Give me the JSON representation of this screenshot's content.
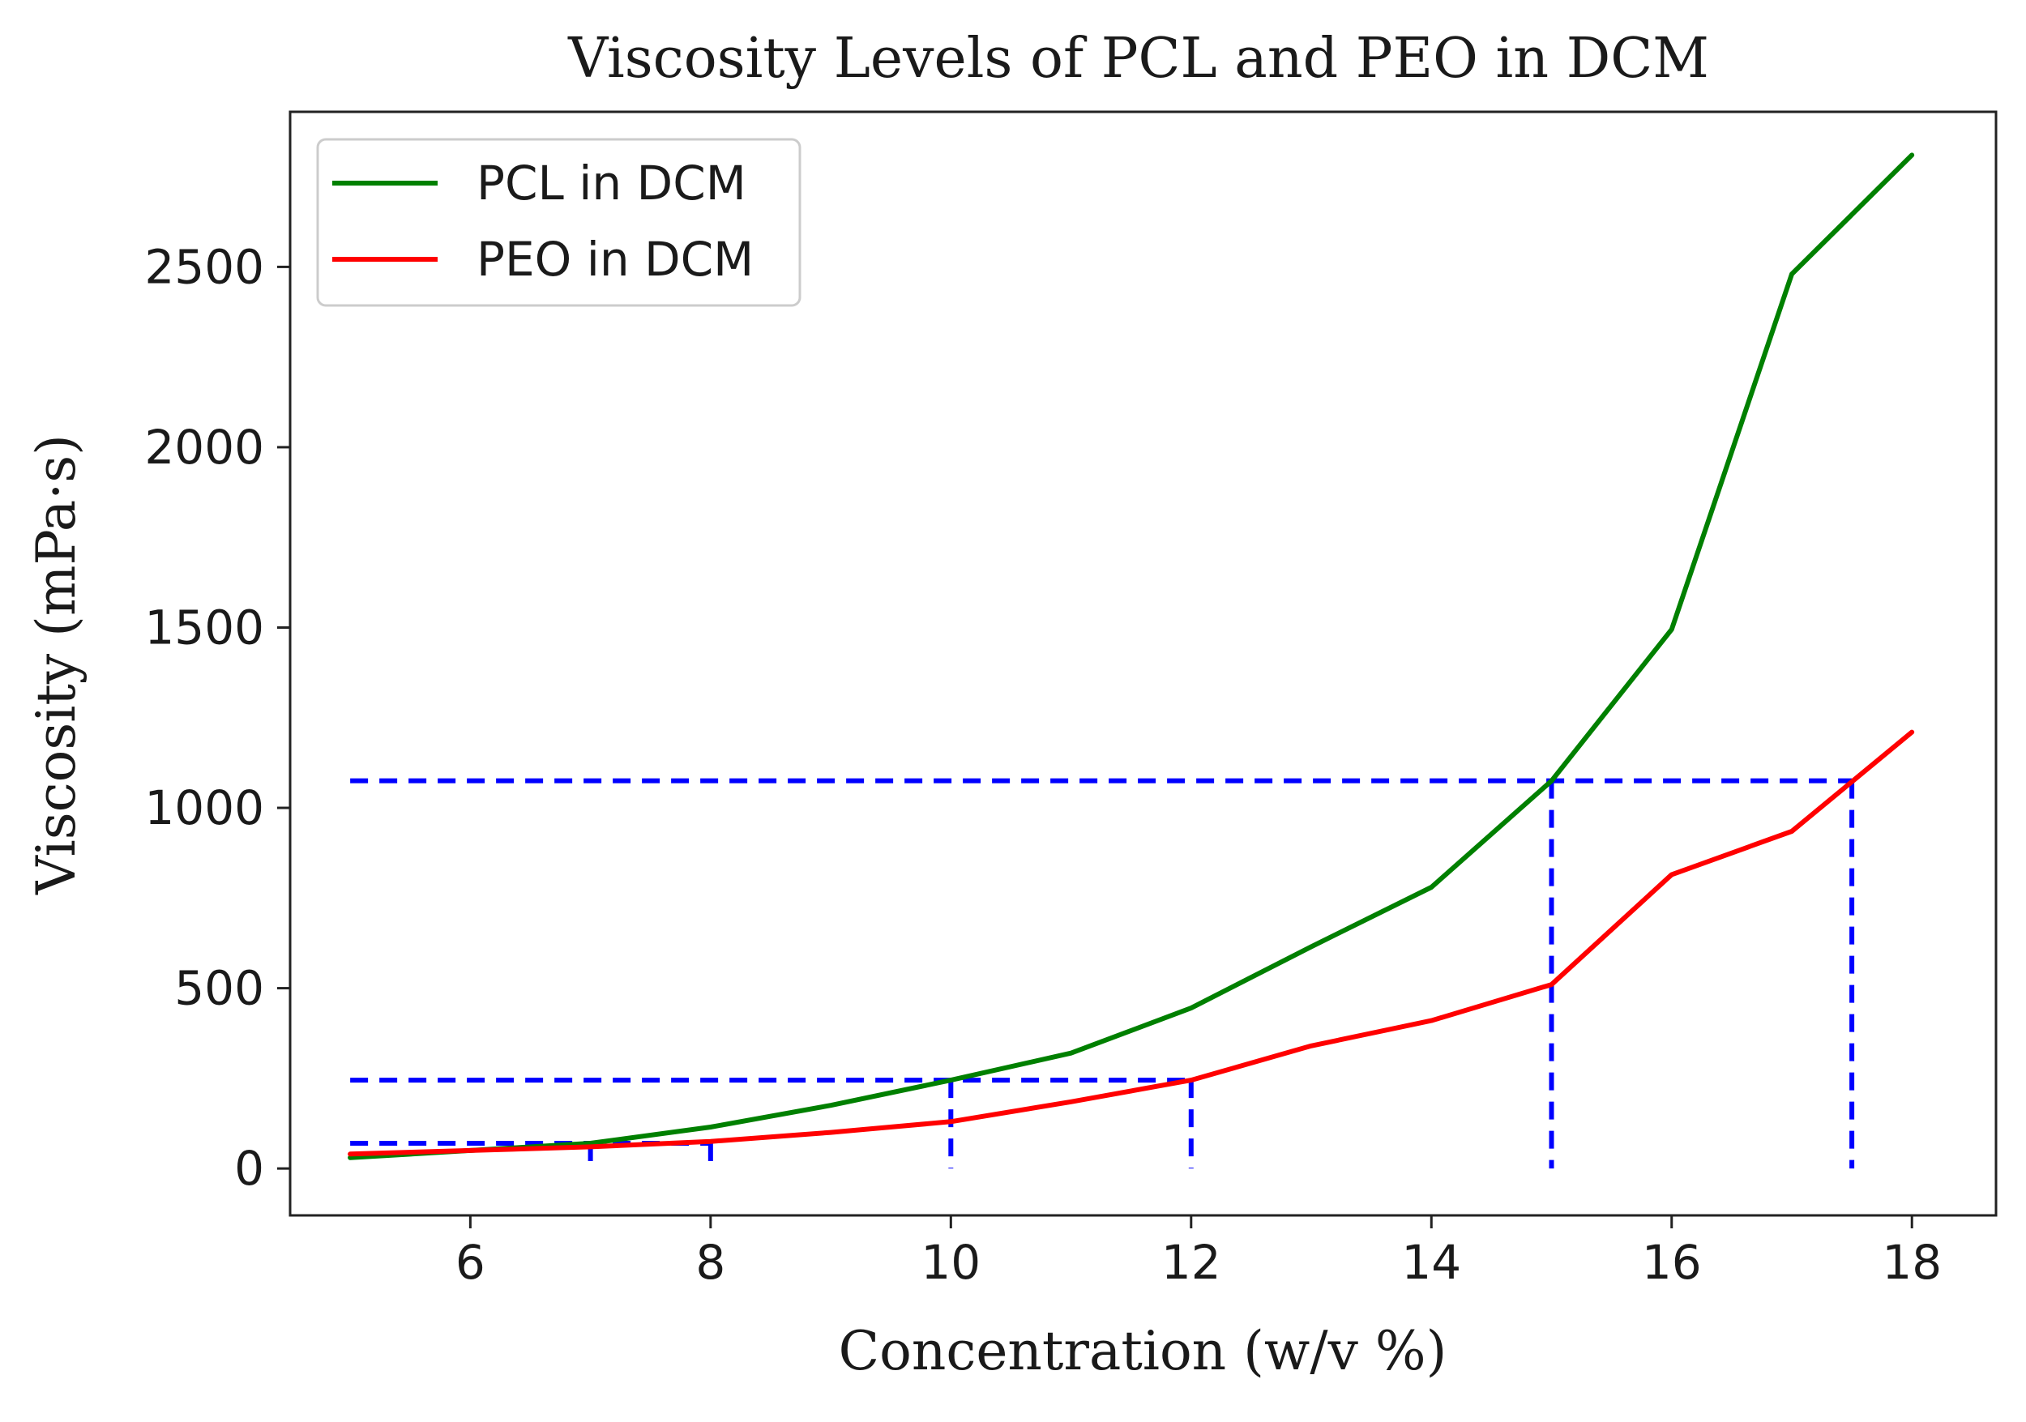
{
  "chart_data": {
    "type": "line",
    "title": "Viscosity Levels of PCL and PEO in DCM",
    "xlabel": "Concentration (w/v %)",
    "ylabel": "Viscosity (mPa·s)",
    "xlim": [
      4.5,
      18.7
    ],
    "ylim": [
      -130,
      2930
    ],
    "xticks": [
      6,
      8,
      10,
      12,
      14,
      16,
      18
    ],
    "yticks": [
      0,
      500,
      1000,
      1500,
      2000,
      2500
    ],
    "grid": false,
    "legend": {
      "position": "top-left"
    },
    "series": [
      {
        "name": "PCL in DCM",
        "color": "#008000",
        "x": [
          5,
          6,
          7,
          8,
          9,
          10,
          11,
          12,
          13,
          14,
          15,
          16,
          17,
          18
        ],
        "y": [
          30,
          50,
          70,
          115,
          175,
          245,
          320,
          445,
          615,
          780,
          1075,
          1495,
          2480,
          2810
        ]
      },
      {
        "name": "PEO in DCM",
        "color": "#ff0000",
        "x": [
          5,
          6,
          7,
          8,
          9,
          10,
          11,
          12,
          13,
          14,
          15,
          16,
          17,
          18
        ],
        "y": [
          40,
          50,
          60,
          75,
          100,
          130,
          185,
          245,
          340,
          410,
          510,
          815,
          935,
          1210
        ]
      }
    ],
    "reference_lines": {
      "color": "#0000ff",
      "horizontal": [
        {
          "y": 1075,
          "x_from": 5,
          "x_to": 17.5
        },
        {
          "y": 245,
          "x_from": 5,
          "x_to": 12
        },
        {
          "y": 70,
          "x_from": 5,
          "x_to": 8
        }
      ],
      "vertical": [
        {
          "x": 7,
          "y_from": 0,
          "y_to": 70
        },
        {
          "x": 8,
          "y_from": 0,
          "y_to": 70
        },
        {
          "x": 10,
          "y_from": 0,
          "y_to": 245
        },
        {
          "x": 12,
          "y_from": 0,
          "y_to": 245
        },
        {
          "x": 15,
          "y_from": 0,
          "y_to": 1075
        },
        {
          "x": 17.5,
          "y_from": 0,
          "y_to": 1075
        }
      ]
    }
  }
}
